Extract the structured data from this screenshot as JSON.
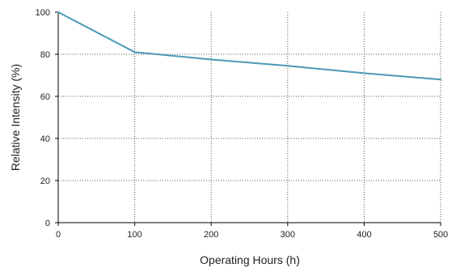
{
  "chart_data": {
    "type": "line",
    "title": "",
    "xlabel": "Operating Hours (h)",
    "ylabel": "Relative Intensity (%)",
    "xlim": [
      0,
      500
    ],
    "ylim": [
      0,
      100
    ],
    "x_ticks": [
      "0",
      "100",
      "200",
      "300",
      "400",
      "500"
    ],
    "y_ticks": [
      "0",
      "20",
      "40",
      "60",
      "80",
      "100"
    ],
    "grid": true,
    "series": [
      {
        "color": "#4a98b8",
        "x": [
          0,
          100,
          200,
          300,
          400,
          500
        ],
        "y": [
          100,
          81,
          77.5,
          74.5,
          71,
          68
        ]
      }
    ]
  }
}
